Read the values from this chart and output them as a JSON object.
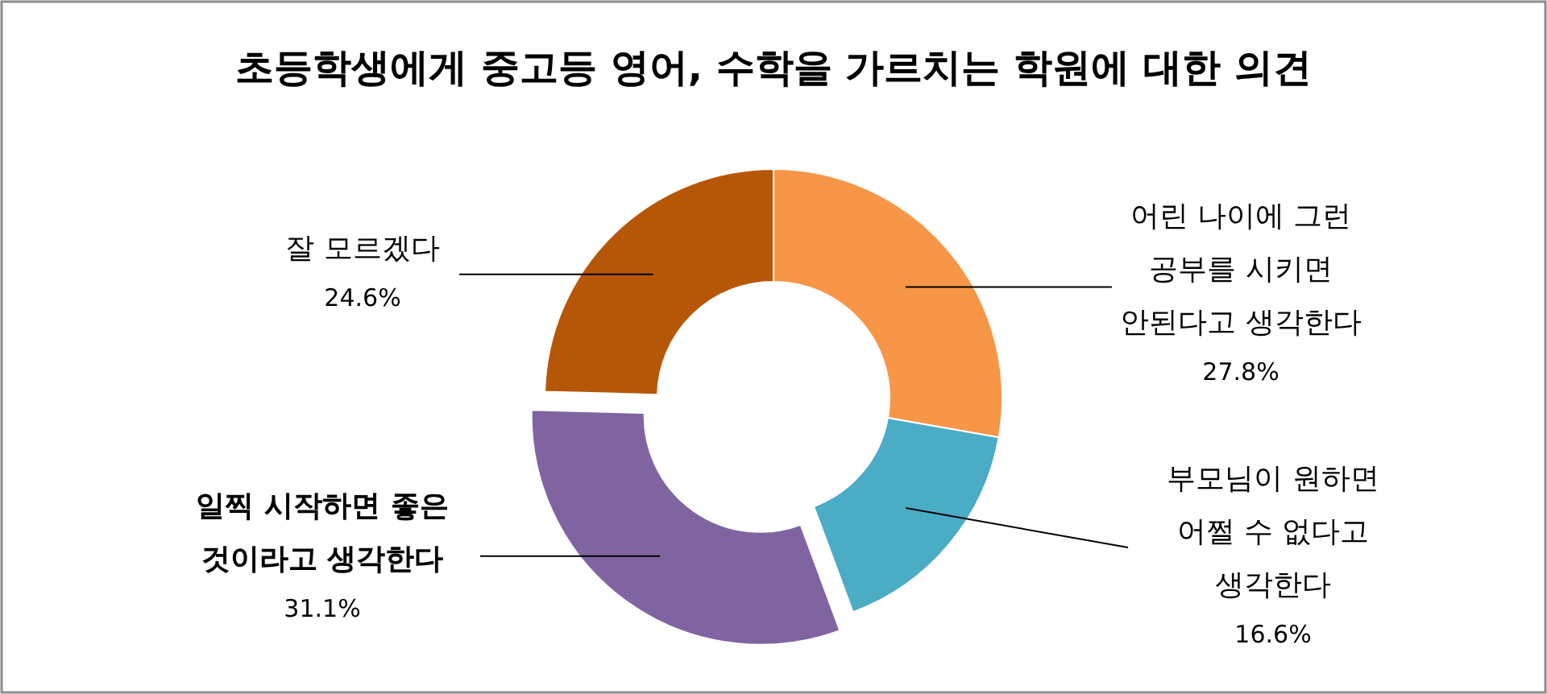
{
  "chart_data": {
    "type": "donut",
    "title": "초등학생에게 중고등 영어, 수학을 가르치는 학원에 대한 의견",
    "categories": [
      "어린 나이에 그런 공부를 시키면 안된다고 생각한다",
      "부모님이 원하면 어쩔 수 없다고 생각한다",
      "일찍 시작하면 좋은 것이라고 생각한다",
      "잘 모르겠다"
    ],
    "values": [
      27.8,
      16.6,
      31.1,
      24.6
    ],
    "colors": [
      "#f79646",
      "#4bacc6",
      "#8064a2",
      "#b65708"
    ],
    "value_labels": [
      "27.8%",
      "16.6%",
      "31.1%",
      "24.6%"
    ]
  }
}
